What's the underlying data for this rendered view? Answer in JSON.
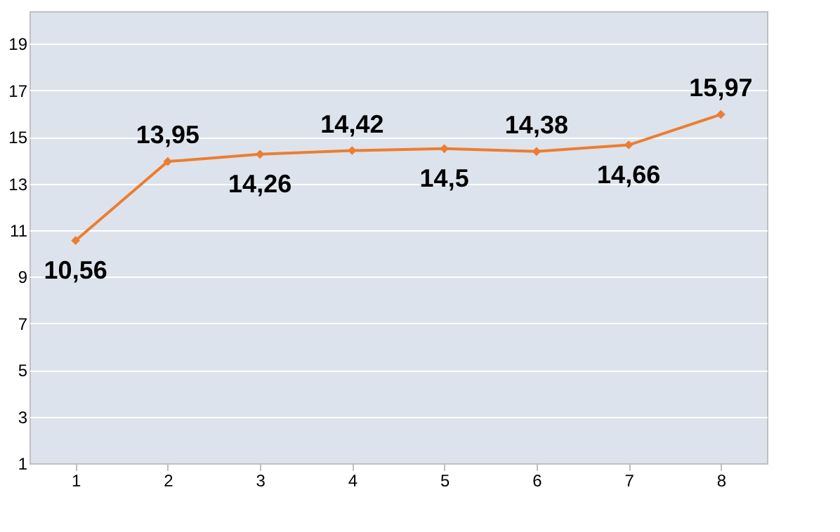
{
  "chart_data": {
    "type": "line",
    "categories": [
      "1",
      "2",
      "3",
      "4",
      "5",
      "6",
      "7",
      "8"
    ],
    "series": [
      {
        "color": "#ed7d31",
        "values": [
          10.56,
          13.95,
          14.26,
          14.42,
          14.5,
          14.38,
          14.66,
          15.97
        ],
        "value_labels": [
          "10,56",
          "13,95",
          "14,26",
          "14,42",
          "14,5",
          "14,38",
          "14,66",
          "15,97"
        ]
      }
    ],
    "ylim": [
      1,
      20.4
    ],
    "yticks": [
      1,
      3,
      5,
      7,
      9,
      11,
      13,
      15,
      17,
      19
    ],
    "grid": "y",
    "marker": "diamond",
    "line_style": "solid"
  }
}
